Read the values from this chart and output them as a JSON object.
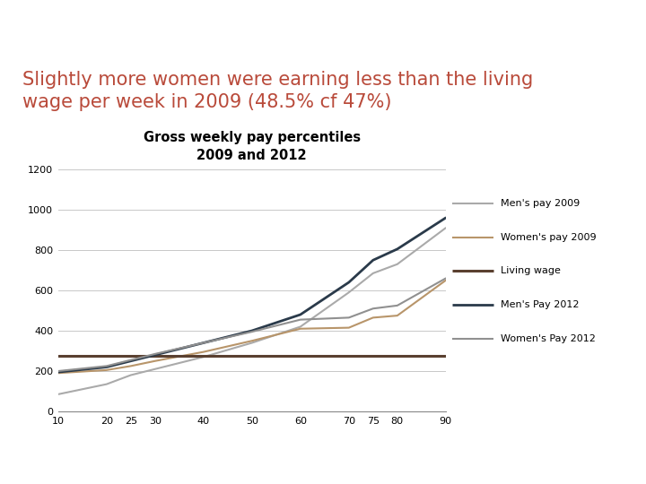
{
  "title_main": "Slightly more women were earning less than the living\nwage per week in 2009 (48.5% cf 47%)",
  "chart_title": "Gross weekly pay percentiles\n2009 and 2012",
  "title_color": "#b94a3a",
  "background_top": "#8a9a95",
  "x_ticks": [
    10,
    20,
    25,
    30,
    40,
    50,
    60,
    70,
    75,
    80,
    90
  ],
  "ylim": [
    0,
    1200
  ],
  "yticks": [
    0,
    200,
    400,
    600,
    800,
    1000,
    1200
  ],
  "series": {
    "mens_pay_2009": {
      "x": [
        10,
        20,
        25,
        30,
        40,
        50,
        60,
        70,
        75,
        80,
        90
      ],
      "y": [
        85,
        135,
        180,
        210,
        270,
        340,
        420,
        590,
        685,
        730,
        910
      ],
      "color": "#aaaaaa",
      "label": "Men's pay 2009",
      "linewidth": 1.5
    },
    "womens_pay_2009": {
      "x": [
        10,
        20,
        25,
        30,
        40,
        50,
        60,
        70,
        75,
        80,
        90
      ],
      "y": [
        190,
        205,
        225,
        250,
        295,
        350,
        410,
        415,
        465,
        475,
        650
      ],
      "color": "#b8956a",
      "label": "Women's pay 2009",
      "linewidth": 1.5
    },
    "living_wage_line": {
      "x": [
        10,
        90
      ],
      "y": [
        275,
        275
      ],
      "color": "#5a4030",
      "label": "Living wage",
      "linewidth": 2.2
    },
    "mens_pay_2012": {
      "x": [
        10,
        20,
        25,
        30,
        40,
        50,
        60,
        70,
        75,
        80,
        90
      ],
      "y": [
        195,
        220,
        250,
        280,
        340,
        400,
        480,
        640,
        750,
        805,
        960
      ],
      "color": "#2a3a4a",
      "label": "Men's Pay 2012",
      "linewidth": 2.0
    },
    "womens_pay_2012": {
      "x": [
        10,
        20,
        25,
        30,
        40,
        50,
        60,
        70,
        75,
        80,
        90
      ],
      "y": [
        200,
        225,
        255,
        285,
        340,
        395,
        455,
        465,
        510,
        525,
        660
      ],
      "color": "#909090",
      "label": "Women's Pay 2012",
      "linewidth": 1.5
    }
  },
  "legend_fontsize": 8,
  "chart_title_fontsize": 10.5,
  "main_title_fontsize": 15
}
